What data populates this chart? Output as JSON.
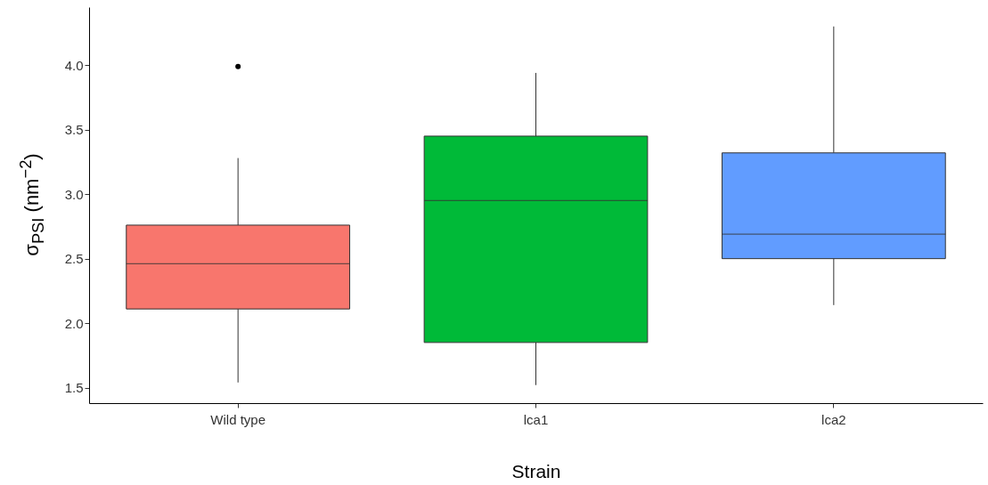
{
  "chart_data": {
    "type": "box",
    "xlabel": "Strain",
    "ylabel": "σ$_{PSI}$ (nm$^{−2}$)",
    "categories": [
      "Wild type",
      "lca1",
      "lca2"
    ],
    "colors": [
      "#f8766d",
      "#00ba38",
      "#619cff"
    ],
    "boxes": [
      {
        "low": 1.54,
        "q1": 2.11,
        "median": 2.46,
        "q3": 2.76,
        "high": 3.28,
        "outliers": [
          3.99
        ]
      },
      {
        "low": 1.52,
        "q1": 1.85,
        "median": 2.95,
        "q3": 3.45,
        "high": 3.94
      },
      {
        "low": 2.14,
        "q1": 2.5,
        "median": 2.69,
        "q3": 3.32,
        "high": 4.3
      }
    ],
    "ylim": [
      1.38,
      4.45
    ],
    "yticks": [
      {
        "value": 1.5,
        "label": "1.5"
      },
      {
        "value": 2,
        "label": "2.0"
      },
      {
        "value": 2.5,
        "label": "2.5"
      },
      {
        "value": 3,
        "label": "3.0"
      },
      {
        "value": 3.5,
        "label": "3.5"
      },
      {
        "value": 4,
        "label": "4.0"
      }
    ],
    "grid": false
  }
}
